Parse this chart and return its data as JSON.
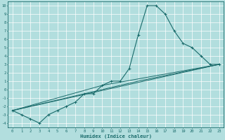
{
  "xlabel": "Humidex (Indice chaleur)",
  "bg_color": "#b2dede",
  "grid_color": "#ffffff",
  "line_color": "#1a6b6b",
  "marker": "+",
  "xlim": [
    -0.5,
    23.5
  ],
  "ylim": [
    -4.5,
    10.5
  ],
  "xticks": [
    0,
    1,
    2,
    3,
    4,
    5,
    6,
    7,
    8,
    9,
    10,
    11,
    12,
    13,
    14,
    15,
    16,
    17,
    18,
    19,
    20,
    21,
    22,
    23
  ],
  "yticks": [
    -4,
    -3,
    -2,
    -1,
    0,
    1,
    2,
    3,
    4,
    5,
    6,
    7,
    8,
    9,
    10
  ],
  "series": [
    [
      0,
      -2.5
    ],
    [
      1,
      -3.0
    ],
    [
      2,
      -3.5
    ],
    [
      3,
      -4.0
    ],
    [
      4,
      -3.0
    ],
    [
      5,
      -2.5
    ],
    [
      6,
      -2.0
    ],
    [
      7,
      -1.5
    ],
    [
      8,
      -0.5
    ],
    [
      9,
      -0.5
    ],
    [
      10,
      0.5
    ],
    [
      11,
      1.0
    ],
    [
      12,
      1.0
    ],
    [
      13,
      2.5
    ],
    [
      14,
      6.5
    ],
    [
      15,
      10.0
    ],
    [
      16,
      10.0
    ],
    [
      17,
      9.0
    ],
    [
      18,
      7.0
    ],
    [
      19,
      5.5
    ],
    [
      20,
      5.0
    ],
    [
      21,
      4.0
    ],
    [
      22,
      3.0
    ],
    [
      23,
      3.0
    ]
  ],
  "line2": [
    [
      0,
      -2.5
    ],
    [
      23,
      3.0
    ]
  ],
  "line3": [
    [
      0,
      -2.5
    ],
    [
      14,
      1.0
    ],
    [
      23,
      3.0
    ]
  ],
  "line4": [
    [
      0,
      -2.5
    ],
    [
      10,
      0.5
    ],
    [
      23,
      3.0
    ]
  ]
}
